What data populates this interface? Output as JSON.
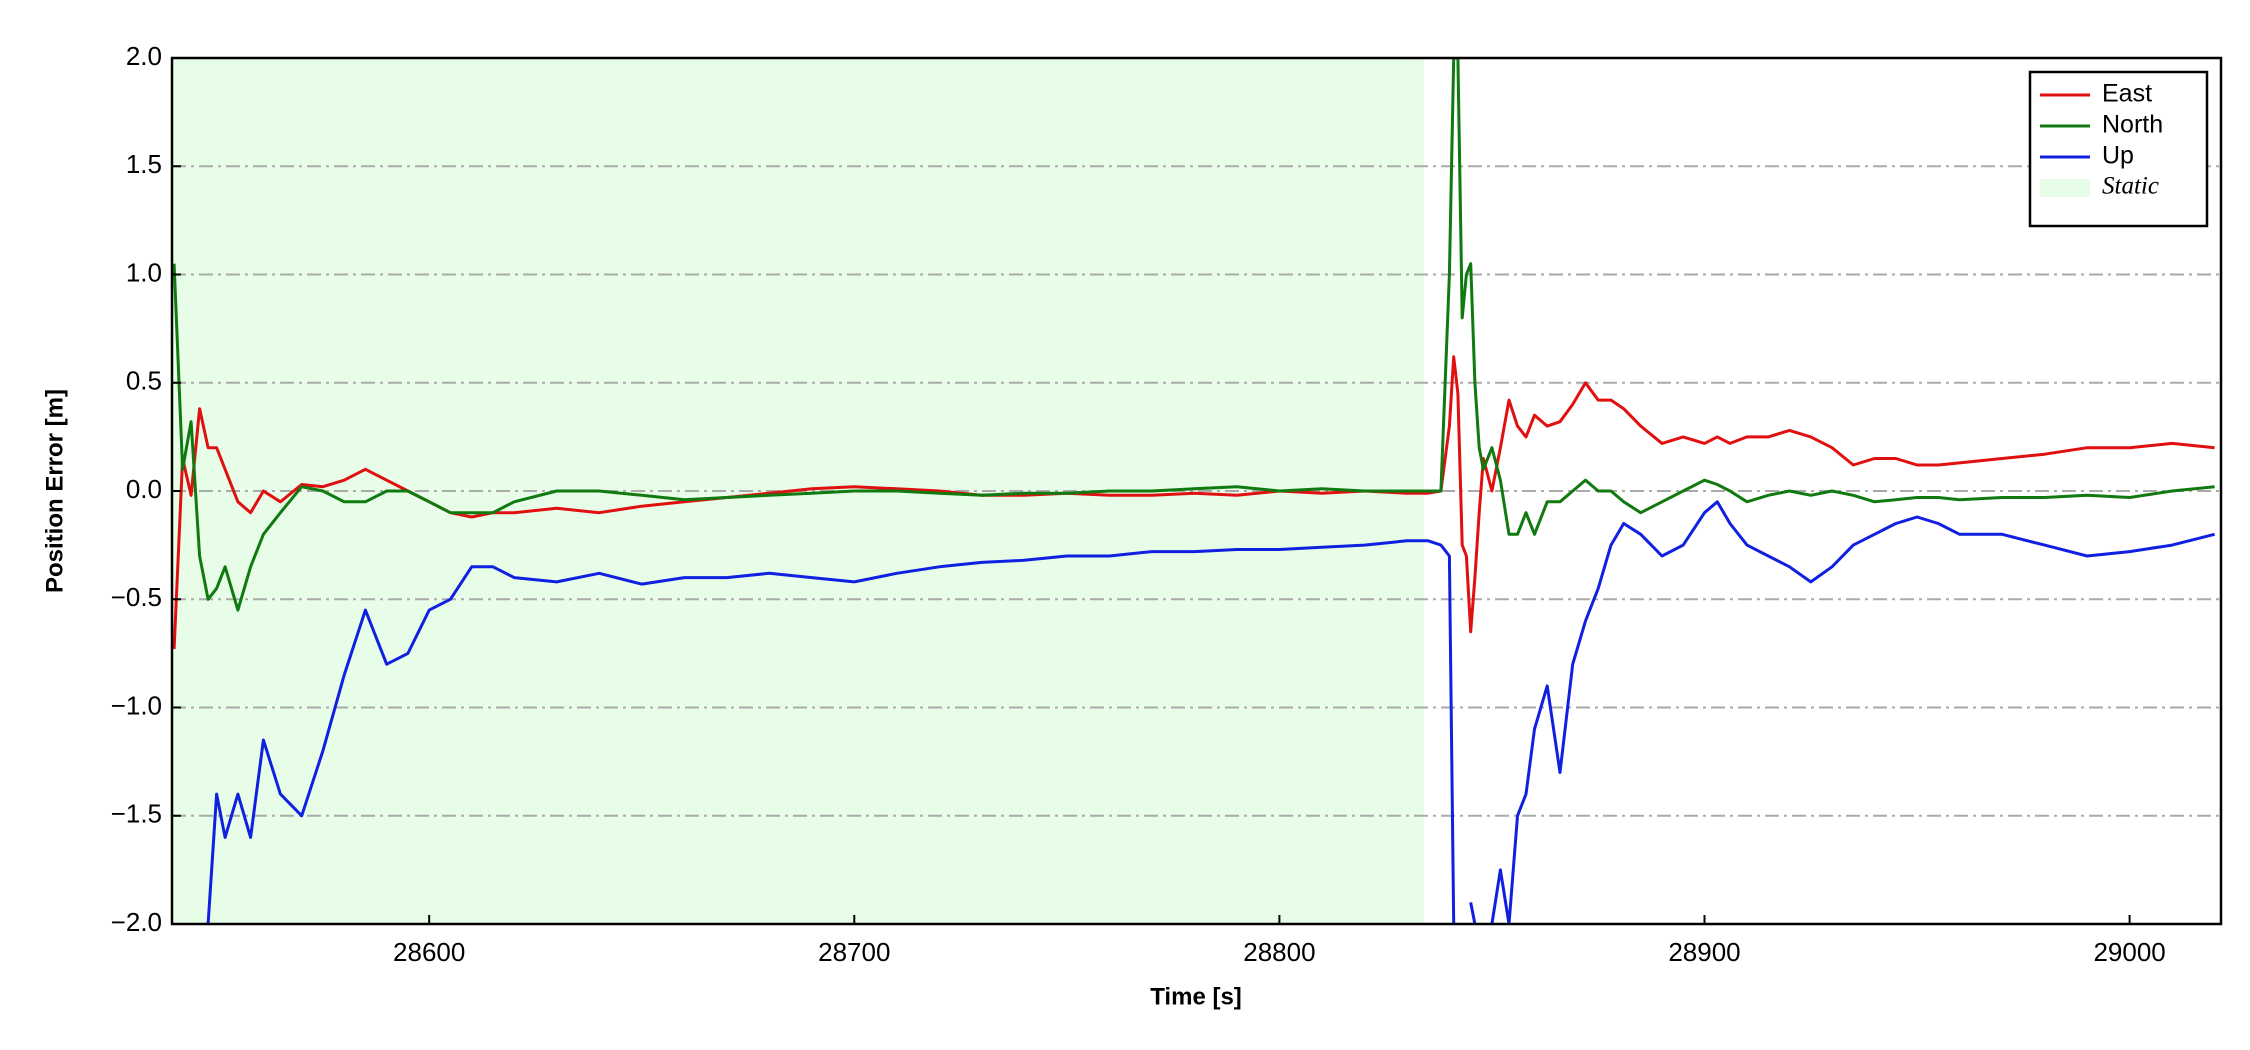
{
  "chart_data": {
    "type": "line",
    "xlabel": "Time [s]",
    "ylabel": "Position Error [m]",
    "xlim": [
      28539.5,
      29021.5
    ],
    "ylim": [
      -2,
      2
    ],
    "xticks": [
      28600,
      28700,
      28800,
      28900,
      29000
    ],
    "yticks": [
      {
        "value": -2,
        "label": "−2.0"
      },
      {
        "value": -1.5,
        "label": "−1.5"
      },
      {
        "value": -1,
        "label": "−1.0"
      },
      {
        "value": -0.5,
        "label": "−0.5"
      },
      {
        "value": 0,
        "label": "0.0"
      },
      {
        "value": 0.5,
        "label": "0.5"
      },
      {
        "value": 1,
        "label": "1.0"
      },
      {
        "value": 1.5,
        "label": "1.5"
      },
      {
        "value": 2,
        "label": "2.0"
      }
    ],
    "grid": true,
    "legend": "upper right",
    "spans": [
      {
        "name": "Static",
        "start": 28539.5,
        "end": 28834,
        "color": "#e8fde8"
      }
    ],
    "x": [
      28540,
      28542,
      28544,
      28546,
      28548,
      28550,
      28552,
      28555,
      28558,
      28561,
      28565,
      28570,
      28575,
      28580,
      28585,
      28590,
      28595,
      28600,
      28605,
      28610,
      28615,
      28620,
      28630,
      28640,
      28650,
      28660,
      28670,
      28680,
      28690,
      28700,
      28710,
      28720,
      28730,
      28740,
      28750,
      28760,
      28770,
      28780,
      28790,
      28800,
      28810,
      28820,
      28830,
      28835,
      28838,
      28840,
      28841,
      28842,
      28843,
      28844,
      28845,
      28846,
      28847,
      28848,
      28850,
      28852,
      28854,
      28856,
      28858,
      28860,
      28863,
      28866,
      28869,
      28872,
      28875,
      28878,
      28881,
      28885,
      28890,
      28895,
      28900,
      28903,
      28906,
      28910,
      28915,
      28920,
      28925,
      28930,
      28935,
      28940,
      28945,
      28950,
      28955,
      28960,
      28970,
      28980,
      28990,
      29000,
      29010,
      29020
    ],
    "series": [
      {
        "name": "East",
        "color": "#e01010",
        "values": [
          -0.73,
          0.15,
          -0.02,
          0.38,
          0.2,
          0.2,
          0.1,
          -0.05,
          -0.1,
          0.0,
          -0.05,
          0.03,
          0.02,
          0.05,
          0.1,
          0.05,
          0.0,
          -0.05,
          -0.1,
          -0.12,
          -0.1,
          -0.1,
          -0.08,
          -0.1,
          -0.07,
          -0.05,
          -0.03,
          -0.01,
          0.01,
          0.02,
          0.01,
          0.0,
          -0.02,
          -0.02,
          -0.01,
          -0.02,
          -0.02,
          -0.01,
          -0.02,
          0.0,
          -0.01,
          0.0,
          -0.01,
          -0.01,
          0.0,
          0.3,
          0.62,
          0.45,
          -0.25,
          -0.3,
          -0.65,
          -0.4,
          -0.1,
          0.15,
          0.0,
          0.2,
          0.42,
          0.3,
          0.25,
          0.35,
          0.3,
          0.32,
          0.4,
          0.5,
          0.42,
          0.42,
          0.38,
          0.3,
          0.22,
          0.25,
          0.22,
          0.25,
          0.22,
          0.25,
          0.25,
          0.28,
          0.25,
          0.2,
          0.12,
          0.15,
          0.15,
          0.12,
          0.12,
          0.13,
          0.15,
          0.17,
          0.2,
          0.2,
          0.22,
          0.2
        ]
      },
      {
        "name": "North",
        "color": "#107a10",
        "values": [
          1.05,
          0.1,
          0.32,
          -0.3,
          -0.5,
          -0.45,
          -0.35,
          -0.55,
          -0.35,
          -0.2,
          -0.1,
          0.02,
          0.0,
          -0.05,
          -0.05,
          0.0,
          0.0,
          -0.05,
          -0.1,
          -0.1,
          -0.1,
          -0.05,
          0.0,
          0.0,
          -0.02,
          -0.04,
          -0.03,
          -0.02,
          -0.01,
          0.0,
          0.0,
          -0.01,
          -0.02,
          -0.01,
          -0.01,
          0.0,
          0.0,
          0.01,
          0.02,
          0.0,
          0.01,
          0.0,
          0.0,
          0.0,
          0.0,
          1.0,
          2.0,
          2.0,
          0.8,
          1.0,
          1.05,
          0.5,
          0.2,
          0.1,
          0.2,
          0.05,
          -0.2,
          -0.2,
          -0.1,
          -0.2,
          -0.05,
          -0.05,
          0.0,
          0.05,
          0.0,
          0.0,
          -0.05,
          -0.1,
          -0.05,
          0.0,
          0.05,
          0.03,
          0.0,
          -0.05,
          -0.02,
          0.0,
          -0.02,
          0.0,
          -0.02,
          -0.05,
          -0.04,
          -0.03,
          -0.03,
          -0.04,
          -0.03,
          -0.03,
          -0.02,
          -0.03,
          0.0,
          0.02
        ]
      },
      {
        "name": "Up",
        "color": "#1020e0",
        "values": [
          null,
          null,
          null,
          null,
          -2.0,
          -1.4,
          -1.6,
          -1.4,
          -1.6,
          -1.15,
          -1.4,
          -1.5,
          -1.2,
          -0.85,
          -0.55,
          -0.8,
          -0.75,
          -0.55,
          -0.5,
          -0.35,
          -0.35,
          -0.4,
          -0.42,
          -0.38,
          -0.43,
          -0.4,
          -0.4,
          -0.38,
          -0.4,
          -0.42,
          -0.38,
          -0.35,
          -0.33,
          -0.32,
          -0.3,
          -0.3,
          -0.28,
          -0.28,
          -0.27,
          -0.27,
          -0.26,
          -0.25,
          -0.23,
          -0.23,
          -0.25,
          -0.3,
          -2.0,
          null,
          null,
          null,
          -1.9,
          -2.0,
          null,
          null,
          -2.0,
          -1.75,
          -2.0,
          -1.5,
          -1.4,
          -1.1,
          -0.9,
          -1.3,
          -0.8,
          -0.6,
          -0.45,
          -0.25,
          -0.15,
          -0.2,
          -0.3,
          -0.25,
          -0.1,
          -0.05,
          -0.15,
          -0.25,
          -0.3,
          -0.35,
          -0.42,
          -0.35,
          -0.25,
          -0.2,
          -0.15,
          -0.12,
          -0.15,
          -0.2,
          -0.2,
          -0.25,
          -0.3,
          -0.28,
          -0.25,
          -0.2
        ]
      }
    ]
  }
}
